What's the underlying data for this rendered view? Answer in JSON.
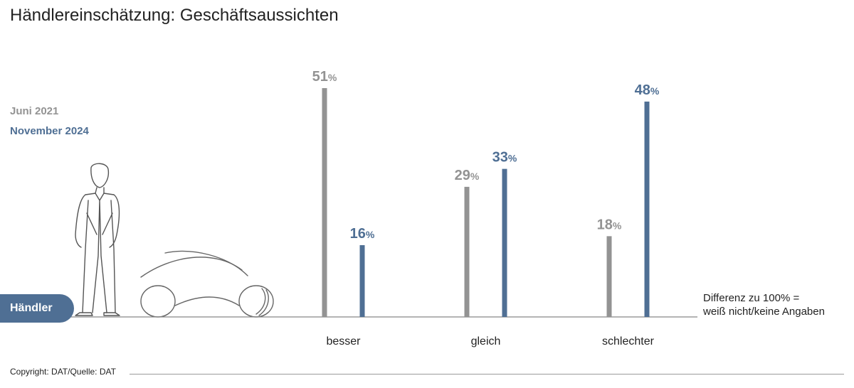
{
  "title": "Händlereinschätzung: Geschäftsaussichten",
  "badge_label": "Händler",
  "note_lines": [
    "Differenz zu 100% =",
    "weiß nicht/keine Angaben"
  ],
  "copyright": "Copyright: DAT/Quelle: DAT",
  "colors": {
    "series1": "#939393",
    "series2": "#4f6f94",
    "axis": "#888888",
    "text": "#222222"
  },
  "chart_data": {
    "type": "bar",
    "title": "Händlereinschätzung: Geschäftsaussichten",
    "categories": [
      "besser",
      "gleich",
      "schlechter"
    ],
    "series": [
      {
        "name": "Juni 2021",
        "values": [
          51,
          29,
          18
        ]
      },
      {
        "name": "November 2024",
        "values": [
          16,
          33,
          48
        ]
      }
    ],
    "value_suffix": "%",
    "ylim": [
      0,
      55
    ],
    "grid": false,
    "legend_position": "left"
  }
}
